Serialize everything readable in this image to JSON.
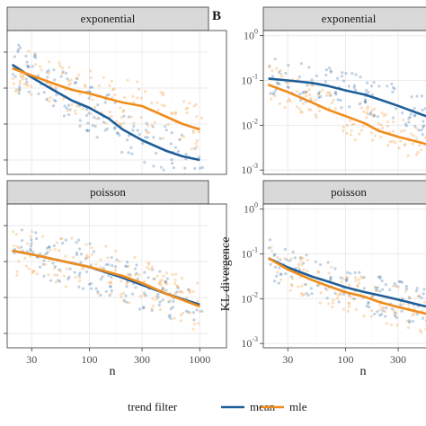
{
  "panel_tags": {
    "B": "B"
  },
  "legend": {
    "title": "trend filter",
    "items": [
      "mean",
      "mle"
    ]
  },
  "colors": {
    "mean": "#1f5f99",
    "mle": "#f08c1c",
    "strip": "#d9d9d9",
    "grid_major": "#ebebeb",
    "grid_minor": "#f5f5f5"
  },
  "chart_data": [
    {
      "type": "scatter",
      "panel": "left-top",
      "strip": "exponential",
      "xlabel": "",
      "ylabel": "",
      "x_scale": "log",
      "xlim": [
        18,
        1200
      ],
      "ylim": [
        0.12,
        0.92
      ],
      "x_ticks": [],
      "y_ticks": [],
      "series": [
        {
          "name": "mean",
          "x": [
            20,
            30,
            50,
            70,
            100,
            150,
            200,
            300,
            500,
            700,
            1000
          ],
          "y": [
            0.73,
            0.66,
            0.58,
            0.53,
            0.49,
            0.43,
            0.37,
            0.31,
            0.25,
            0.22,
            0.2
          ]
        },
        {
          "name": "mle",
          "x": [
            20,
            30,
            50,
            70,
            100,
            150,
            200,
            300,
            500,
            700,
            1000
          ],
          "y": [
            0.71,
            0.67,
            0.62,
            0.59,
            0.57,
            0.54,
            0.52,
            0.5,
            0.44,
            0.4,
            0.37
          ]
        }
      ]
    },
    {
      "type": "scatter",
      "panel": "left-bottom",
      "strip": "poisson",
      "xlabel": "n",
      "ylabel": "",
      "x_scale": "log",
      "xlim": [
        18,
        1200
      ],
      "ylim": [
        0.12,
        0.92
      ],
      "x_ticks": [
        "30",
        "100",
        "300",
        "1000"
      ],
      "x_tick_values": [
        30,
        100,
        300,
        1000
      ],
      "y_ticks": [],
      "series": [
        {
          "name": "mean",
          "x": [
            20,
            30,
            50,
            100,
            200,
            300,
            500,
            1000
          ],
          "y": [
            0.66,
            0.64,
            0.61,
            0.57,
            0.51,
            0.47,
            0.42,
            0.36
          ]
        },
        {
          "name": "mle",
          "x": [
            20,
            30,
            50,
            100,
            200,
            300,
            500,
            1000
          ],
          "y": [
            0.66,
            0.64,
            0.61,
            0.57,
            0.52,
            0.48,
            0.42,
            0.35
          ]
        }
      ]
    },
    {
      "type": "scatter",
      "panel": "right-top",
      "strip": "exponential",
      "xlabel": "",
      "ylabel": "KL divergence",
      "x_scale": "log",
      "y_scale": "log",
      "xlim": [
        18,
        1200
      ],
      "ylim": [
        0.0008,
        1.3
      ],
      "y_tick_values": [
        1,
        0.1,
        0.01,
        0.001
      ],
      "y_ticks": [
        {
          "base": "10",
          "exp": "0"
        },
        {
          "base": "10",
          "exp": "-1"
        },
        {
          "base": "10",
          "exp": "-2"
        },
        {
          "base": "10",
          "exp": "-3"
        }
      ],
      "series": [
        {
          "name": "mean",
          "x": [
            20,
            30,
            50,
            70,
            100,
            150,
            200,
            300,
            500,
            700,
            1000
          ],
          "y": [
            0.11,
            0.1,
            0.088,
            0.075,
            0.06,
            0.048,
            0.038,
            0.027,
            0.017,
            0.013,
            0.01
          ]
        },
        {
          "name": "mle",
          "x": [
            20,
            30,
            50,
            70,
            100,
            150,
            200,
            300,
            500,
            700,
            1000
          ],
          "y": [
            0.08,
            0.055,
            0.032,
            0.022,
            0.016,
            0.011,
            0.0075,
            0.0055,
            0.004,
            0.003,
            0.0025
          ]
        }
      ]
    },
    {
      "type": "scatter",
      "panel": "right-bottom",
      "strip": "poisson",
      "xlabel": "n",
      "ylabel": "KL divergence",
      "x_scale": "log",
      "y_scale": "log",
      "xlim": [
        18,
        1200
      ],
      "ylim": [
        0.0008,
        1.3
      ],
      "x_ticks": [
        "30",
        "100",
        "300"
      ],
      "x_tick_values": [
        30,
        100,
        300
      ],
      "y_tick_values": [
        1,
        0.1,
        0.01,
        0.001
      ],
      "y_ticks": [
        {
          "base": "10",
          "exp": "0"
        },
        {
          "base": "10",
          "exp": "-1"
        },
        {
          "base": "10",
          "exp": "-2"
        },
        {
          "base": "10",
          "exp": "-3"
        }
      ],
      "series": [
        {
          "name": "mean",
          "x": [
            20,
            30,
            50,
            70,
            100,
            150,
            200,
            300,
            500,
            700,
            1000
          ],
          "y": [
            0.08,
            0.05,
            0.031,
            0.024,
            0.018,
            0.014,
            0.012,
            0.0095,
            0.007,
            0.0058,
            0.005
          ]
        },
        {
          "name": "mle",
          "x": [
            20,
            30,
            50,
            70,
            100,
            150,
            200,
            300,
            500,
            700,
            1000
          ],
          "y": [
            0.08,
            0.045,
            0.026,
            0.019,
            0.014,
            0.011,
            0.0085,
            0.0065,
            0.0048,
            0.0039,
            0.0033
          ]
        }
      ]
    }
  ]
}
